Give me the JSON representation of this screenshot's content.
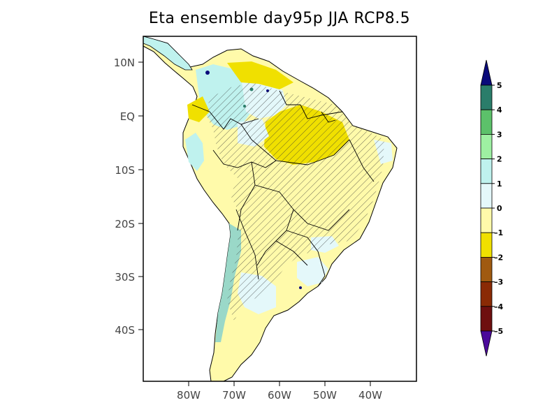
{
  "title": "Eta ensemble day95p JJA RCP8.5",
  "map": {
    "lat_ticks": [
      "10N",
      "EQ",
      "10S",
      "20S",
      "30S",
      "40S"
    ],
    "lon_ticks": [
      "80W",
      "70W",
      "60W",
      "50W",
      "40W"
    ],
    "region": "South America",
    "lon_range": [
      -90,
      -30
    ],
    "lat_range": [
      -50,
      15
    ]
  },
  "colorbar": {
    "labels": [
      "5",
      "4",
      "3",
      "2",
      "1",
      "0",
      "-1",
      "-2",
      "-3",
      "-4",
      "-5"
    ],
    "colors": [
      "#2a7d6a",
      "#5cc16a",
      "#9ef0a2",
      "#bff2ee",
      "#e4f8fa",
      "#fffaaa",
      "#f0e000",
      "#a05a10",
      "#8a2a05",
      "#6e0f0f"
    ],
    "top_arrow_color": "#0a0a7a",
    "bottom_arrow_color": "#4b0a9a"
  },
  "colors": {
    "land_base": "#fffaaa",
    "decrease_strong": "#f0e000",
    "increase_light": "#e4f8fa",
    "increase_medium": "#bff2ee",
    "increase_strong": "#9ad8c8",
    "increase_max": "#2a7d6a"
  }
}
